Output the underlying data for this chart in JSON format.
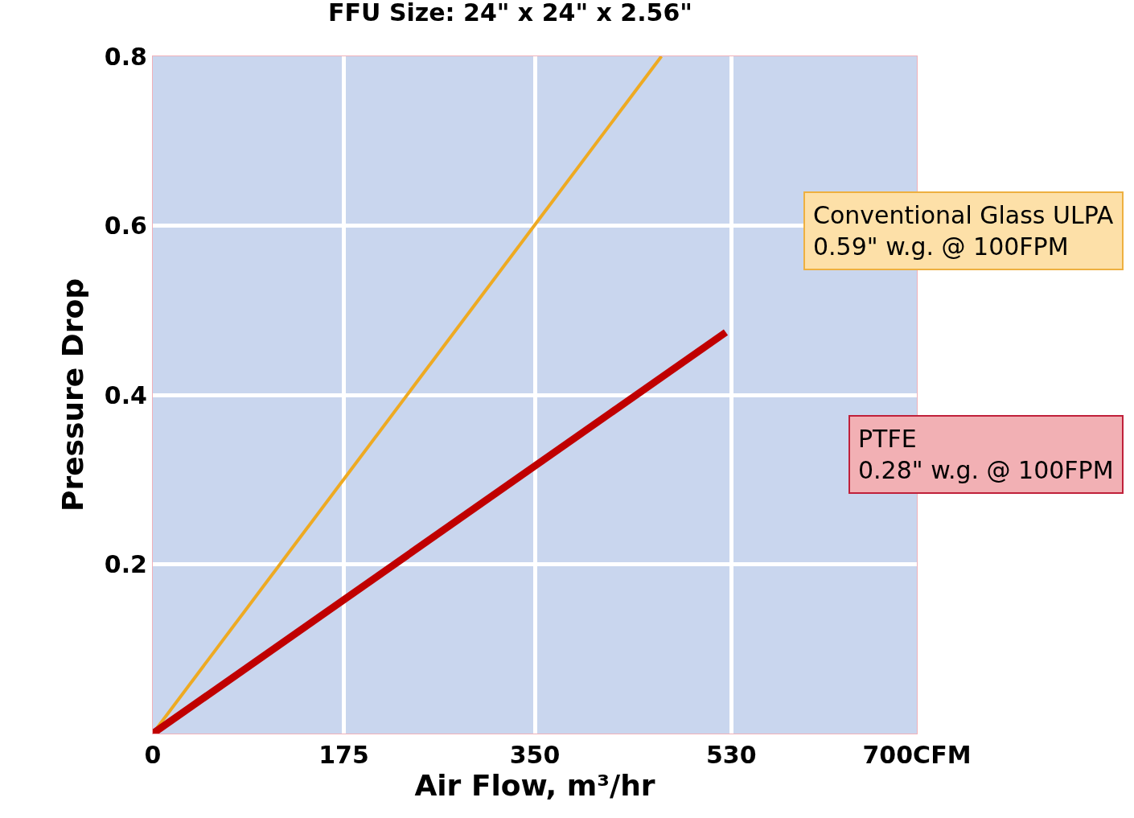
{
  "chart_data": {
    "type": "line",
    "title": "FFU Size: 24\" x 24\" x 2.56\"",
    "xlabel": "Air Flow, m³/hr",
    "ylabel": "Pressure Drop",
    "series": [
      {
        "name": "Conventional Glass ULPA",
        "color": "#eeaa22",
        "x": [
          0,
          466
        ],
        "values": [
          0,
          0.8
        ]
      },
      {
        "name": "PTFE",
        "color": "#c00000",
        "x": [
          0,
          525
        ],
        "values": [
          0,
          0.474
        ]
      }
    ],
    "annotations": [
      "0.59\" w.g. @ 100FPM",
      "0.28\" w.g. @ 100FPM"
    ],
    "xlim": [
      0,
      700
    ],
    "xticks": [
      0,
      175,
      350,
      530,
      {
        "value": 700,
        "label": "700CFM"
      }
    ],
    "ylim": [
      0,
      0.8
    ],
    "yticks": [
      0.2,
      0.4,
      0.6,
      0.8
    ],
    "grid": true,
    "legend": false,
    "marker": "none",
    "line_style": "solid"
  }
}
